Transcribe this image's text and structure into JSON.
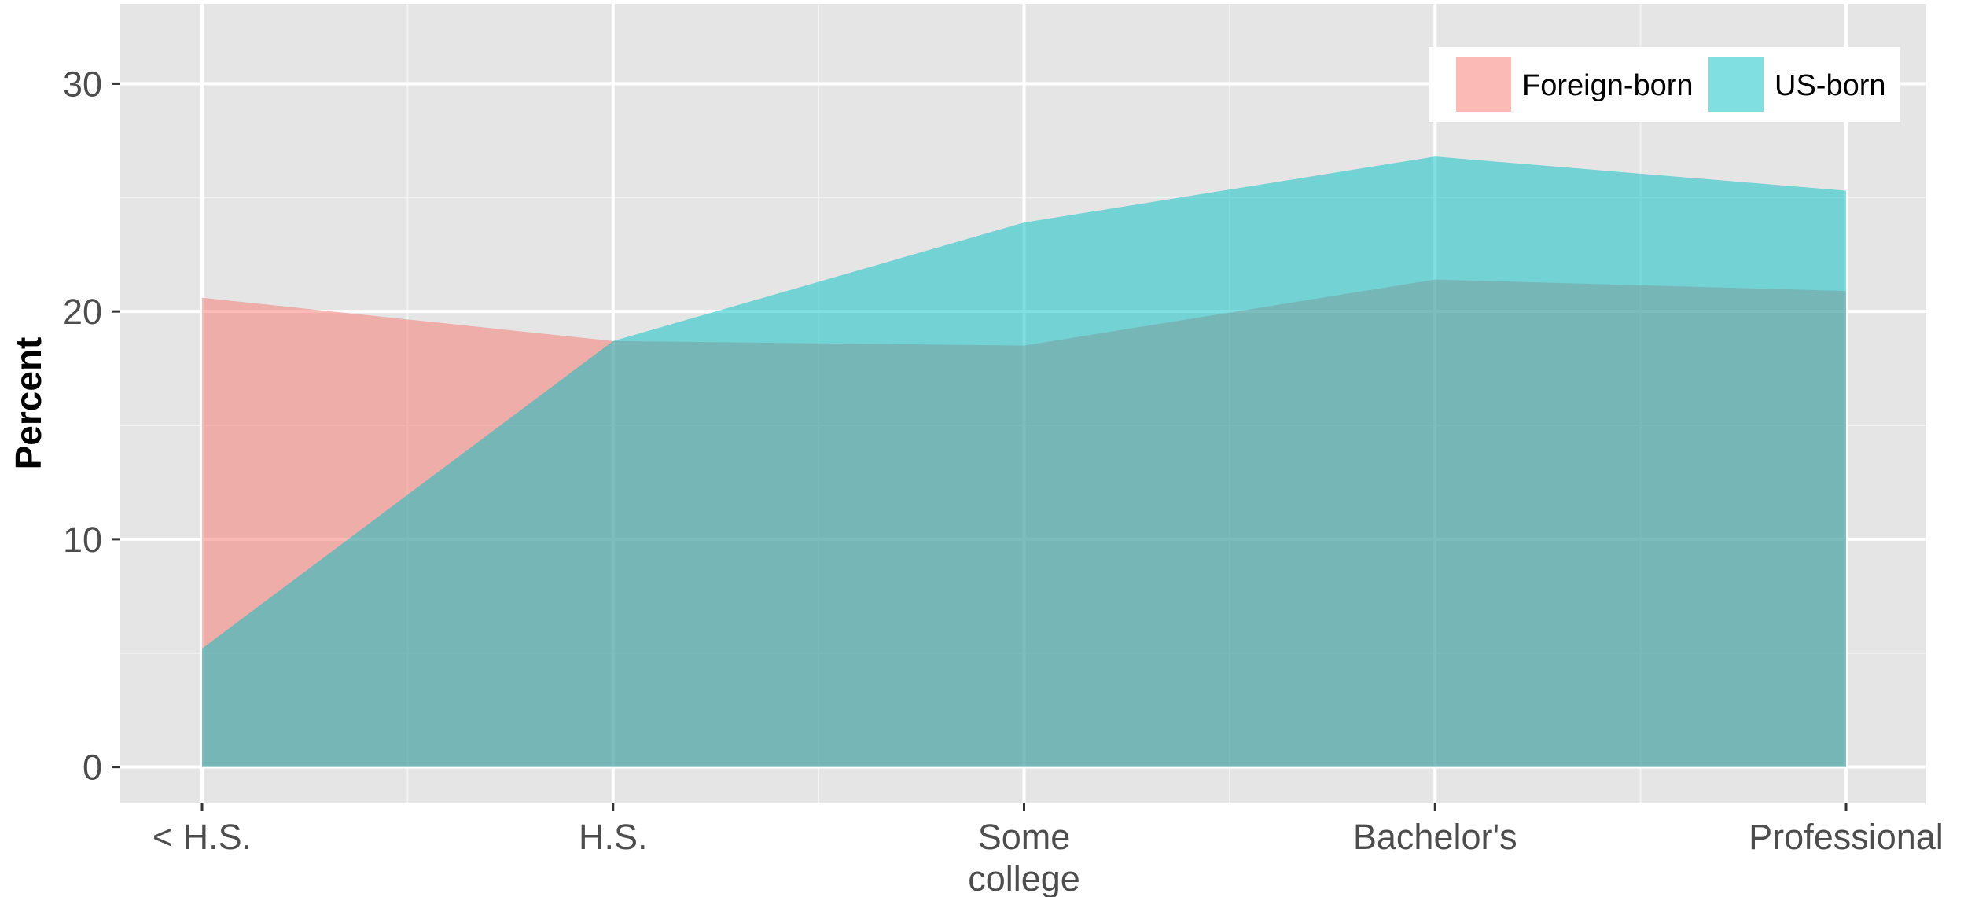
{
  "chart_data": {
    "type": "area",
    "title": "",
    "xlabel": "",
    "ylabel": "Percent",
    "categories": [
      "< H.S.",
      "H.S.",
      "Some college",
      "Bachelor's",
      "Professional"
    ],
    "category_lines": [
      [
        "< H.S."
      ],
      [
        "H.S."
      ],
      [
        "Some",
        "college"
      ],
      [
        "Bachelor's"
      ],
      [
        "Professional"
      ]
    ],
    "series": [
      {
        "name": "Foreign-born",
        "values": [
          20.6,
          18.7,
          18.5,
          21.4,
          20.9
        ],
        "color": "#F8766D"
      },
      {
        "name": "US-born",
        "values": [
          5.2,
          18.7,
          23.9,
          26.8,
          25.3
        ],
        "color": "#00BFC4"
      }
    ],
    "ylim": [
      -1.6,
      33.5
    ],
    "yticks": [
      0,
      10,
      20,
      30
    ],
    "grid": true,
    "legend_position": "top-right",
    "panel_background": "#E5E5E5",
    "fill_opacity": 0.5
  }
}
